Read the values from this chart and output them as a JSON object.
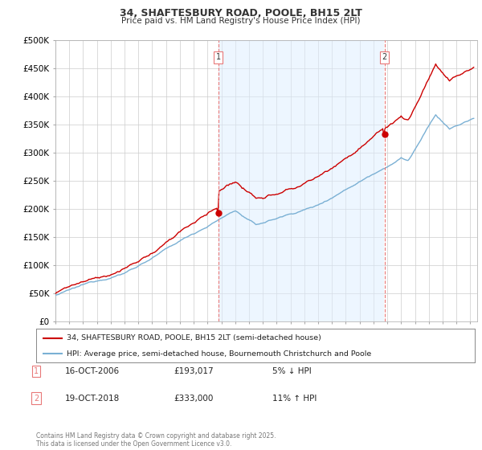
{
  "title1": "34, SHAFTESBURY ROAD, POOLE, BH15 2LT",
  "title2": "Price paid vs. HM Land Registry's House Price Index (HPI)",
  "ylabel_ticks": [
    "£0",
    "£50K",
    "£100K",
    "£150K",
    "£200K",
    "£250K",
    "£300K",
    "£350K",
    "£400K",
    "£450K",
    "£500K"
  ],
  "ytick_values": [
    0,
    50000,
    100000,
    150000,
    200000,
    250000,
    300000,
    350000,
    400000,
    450000,
    500000
  ],
  "ylim": [
    0,
    500000
  ],
  "xlim_start": 1995.0,
  "xlim_end": 2025.5,
  "sale1_x": 2006.79,
  "sale1_y": 193017,
  "sale2_x": 2018.79,
  "sale2_y": 333000,
  "red_color": "#cc0000",
  "blue_color": "#7ab0d4",
  "blue_fill": "#ddeeff",
  "vline_color": "#e87878",
  "legend_line1": "34, SHAFTESBURY ROAD, POOLE, BH15 2LT (semi-detached house)",
  "legend_line2": "HPI: Average price, semi-detached house, Bournemouth Christchurch and Poole",
  "note1_date": "16-OCT-2006",
  "note1_price": "£193,017",
  "note1_hpi": "5% ↓ HPI",
  "note2_date": "19-OCT-2018",
  "note2_price": "£333,000",
  "note2_hpi": "11% ↑ HPI",
  "footer": "Contains HM Land Registry data © Crown copyright and database right 2025.\nThis data is licensed under the Open Government Licence v3.0.",
  "bg_color": "#ffffff",
  "grid_color": "#cccccc"
}
